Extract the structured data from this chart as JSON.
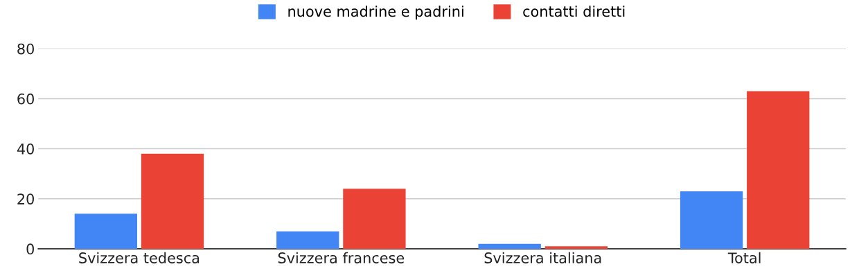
{
  "chart_data": {
    "type": "bar",
    "categories": [
      "Svizzera tedesca",
      "Svizzera francese",
      "Svizzera italiana",
      "Total"
    ],
    "series": [
      {
        "name": "nuove madrine e padrini",
        "color": "#4285f4",
        "values": [
          14,
          7,
          2,
          23
        ]
      },
      {
        "name": "contatti diretti",
        "color": "#ea4335",
        "values": [
          38,
          24,
          1,
          63
        ]
      }
    ],
    "ylim": [
      0,
      80
    ],
    "yticks": [
      0,
      20,
      40,
      60,
      80
    ],
    "grid": "y",
    "legend": "top"
  }
}
